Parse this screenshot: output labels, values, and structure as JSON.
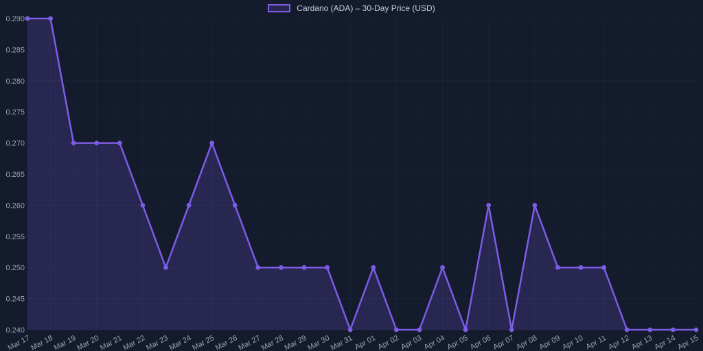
{
  "legend": {
    "label": "Cardano (ADA) – 30-Day Price (USD)"
  },
  "chart_data": {
    "type": "line",
    "title": "Cardano (ADA) – 30-Day Price (USD)",
    "legend_position": "top",
    "grid": true,
    "x": [
      "Mar 17",
      "Mar 18",
      "Mar 19",
      "Mar 20",
      "Mar 21",
      "Mar 22",
      "Mar 23",
      "Mar 24",
      "Mar 25",
      "Mar 26",
      "Mar 27",
      "Mar 28",
      "Mar 29",
      "Mar 30",
      "Mar 31",
      "Apr 01",
      "Apr 02",
      "Apr 03",
      "Apr 04",
      "Apr 05",
      "Apr 06",
      "Apr 07",
      "Apr 08",
      "Apr 09",
      "Apr 10",
      "Apr 11",
      "Apr 12",
      "Apr 13",
      "Apr 14",
      "Apr 15"
    ],
    "values": [
      0.29,
      0.29,
      0.27,
      0.27,
      0.27,
      0.26,
      0.25,
      0.26,
      0.27,
      0.26,
      0.25,
      0.25,
      0.25,
      0.25,
      0.24,
      0.25,
      0.24,
      0.24,
      0.25,
      0.24,
      0.26,
      0.24,
      0.26,
      0.25,
      0.25,
      0.25,
      0.24,
      0.24,
      0.24,
      0.24
    ],
    "ylim": [
      0.24,
      0.29
    ],
    "y_ticks": [
      "0.240",
      "0.245",
      "0.250",
      "0.255",
      "0.260",
      "0.265",
      "0.270",
      "0.275",
      "0.280",
      "0.285",
      "0.290"
    ],
    "xlabel": "",
    "ylabel": "",
    "colors": {
      "background": "#131b2c",
      "line": "#7d5ce6",
      "point": "#7d5ce6",
      "fill": "rgba(125,92,230,0.20)",
      "grid": "rgba(148,163,184,0.055)",
      "tick_text": "#9aa3b2",
      "legend_text": "#c9ced7"
    }
  }
}
